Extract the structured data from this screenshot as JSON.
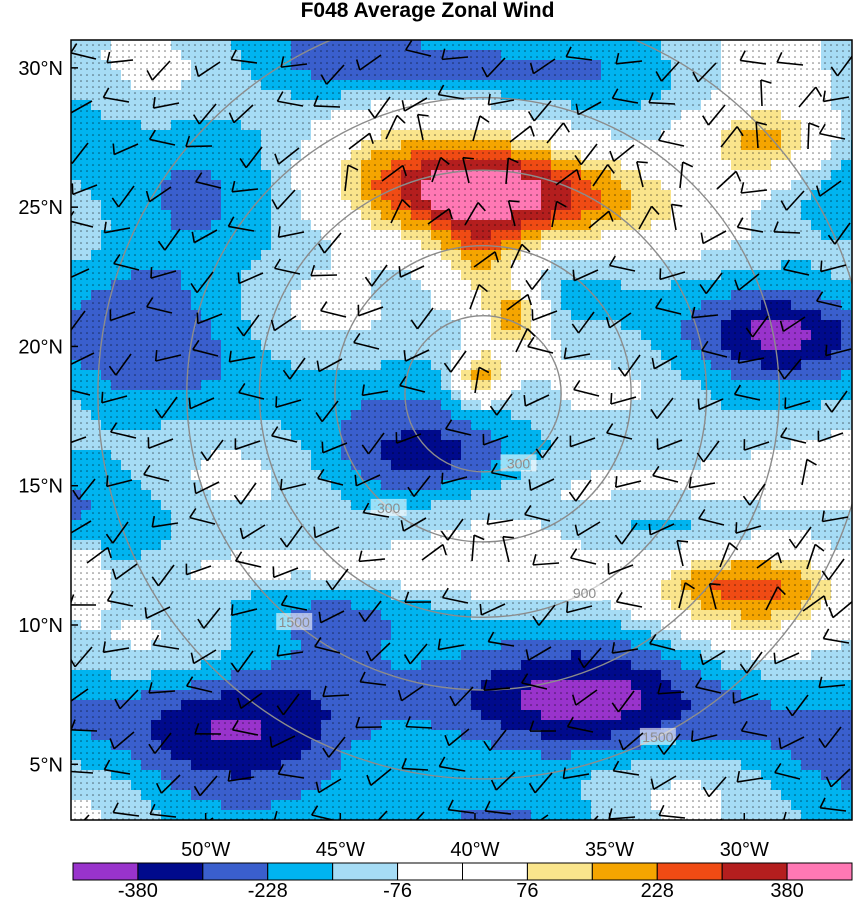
{
  "title": "F048 Average Zonal Wind",
  "colors": {
    "palette": [
      "#9933cc",
      "#000a8c",
      "#3a5fcd",
      "#00b4f0",
      "#a6dcf5",
      "#ffffff",
      "#ffffff",
      "#fae58c",
      "#f5a500",
      "#f04b14",
      "#b41e1e",
      "#ff78b4"
    ],
    "height_rings": "#8c8c8c",
    "wind_barbs": "#000000"
  },
  "chart_data": {
    "type": "heatmap",
    "title": "F048 Average Zonal Wind",
    "xlabel": "",
    "ylabel": "",
    "x_range": [
      -55.0,
      -26.0
    ],
    "y_range": [
      3.0,
      31.0
    ],
    "x_ticks": [
      "50°W",
      "45°W",
      "40°W",
      "35°W",
      "30°W"
    ],
    "x_tick_values": [
      -50,
      -45,
      -40,
      -35,
      -30
    ],
    "y_ticks": [
      "30°N",
      "25°N",
      "20°N",
      "15°N",
      "10°N",
      "5°N"
    ],
    "y_tick_values": [
      30,
      25,
      20,
      15,
      10,
      5
    ],
    "colorbar": {
      "levels": [
        -380,
        -304,
        -228,
        -152,
        -76,
        0,
        76,
        152,
        228,
        304,
        380
      ],
      "labels": [
        "-380",
        "-228",
        "-76",
        "76",
        "228",
        "380"
      ],
      "label_values": [
        -380,
        -228,
        -76,
        76,
        228,
        380
      ]
    },
    "stippling": "dots over much of the domain",
    "contour_overlay": {
      "name": "height rings",
      "center": [
        -39.7,
        18.3
      ],
      "rings": [
        {
          "label": "300",
          "radius_deg": 2.9
        },
        {
          "label": "300",
          "radius_deg": 5.5
        },
        {
          "label": "900",
          "radius_deg": 8.3
        },
        {
          "label": "1500",
          "radius_deg": 11.0
        },
        {
          "label": "1500",
          "radius_deg": 14.3
        }
      ]
    },
    "field_regions": [
      {
        "lon": -38.8,
        "lat": 25.0,
        "value": 190,
        "sx": 5.0,
        "sy": 2.0
      },
      {
        "lon": -36.0,
        "lat": 28.5,
        "value": -80,
        "sx": 8.0,
        "sy": 1.5
      },
      {
        "lon": -40.8,
        "lat": 25.8,
        "value": 140,
        "sx": 6.5,
        "sy": 1.8
      },
      {
        "lon": -39.8,
        "lat": 22.8,
        "value": 120,
        "sx": 1.8,
        "sy": 1.8
      },
      {
        "lon": -38.5,
        "lat": 21.0,
        "value": 140,
        "sx": 1.2,
        "sy": 1.2
      },
      {
        "lon": -39.8,
        "lat": 18.9,
        "value": 160,
        "sx": 1.0,
        "sy": 1.0
      },
      {
        "lon": -29.0,
        "lat": 27.3,
        "value": 190,
        "sx": 2.6,
        "sy": 1.4
      },
      {
        "lon": -30.0,
        "lat": 11.5,
        "value": 220,
        "sx": 4.2,
        "sy": 1.6
      },
      {
        "lon": -32.0,
        "lat": 15.0,
        "value": 30,
        "sx": 6.0,
        "sy": 1.2
      },
      {
        "lon": -45.0,
        "lat": 12.0,
        "value": 20,
        "sx": 7.0,
        "sy": 1.0
      },
      {
        "lon": -54.5,
        "lat": 12.0,
        "value": 40,
        "sx": 0.8,
        "sy": 1.4
      },
      {
        "lon": -38.5,
        "lat": 7.0,
        "value": -360,
        "sx": 8.5,
        "sy": 1.8
      },
      {
        "lon": -49.5,
        "lat": 6.8,
        "value": -310,
        "sx": 5.0,
        "sy": 1.8
      },
      {
        "lon": -42.0,
        "lat": 15.8,
        "value": -260,
        "sx": 3.5,
        "sy": 1.2
      },
      {
        "lon": -52.5,
        "lat": 23.0,
        "value": -260,
        "sx": 3.5,
        "sy": 3.0
      },
      {
        "lon": -28.5,
        "lat": 20.5,
        "value": -310,
        "sx": 3.0,
        "sy": 1.3
      },
      {
        "lon": -42.0,
        "lat": 29.8,
        "value": -310,
        "sx": 4.5,
        "sy": 0.9
      }
    ]
  }
}
